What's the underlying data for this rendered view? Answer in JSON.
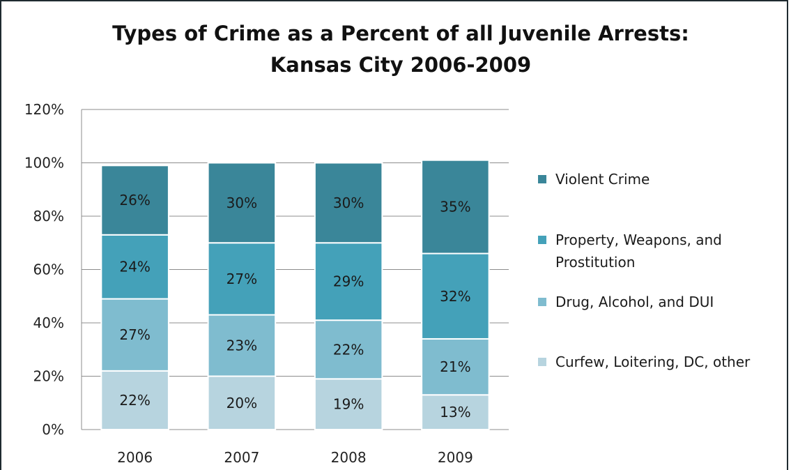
{
  "chart_data": {
    "type": "bar",
    "stacked": true,
    "title": "Types of Crime as a Percent of all Juvenile Arrests:",
    "subtitle": "Kansas City 2006-2009",
    "xlabel": "",
    "ylabel": "",
    "categories": [
      "2006",
      "2007",
      "2008",
      "2009"
    ],
    "ylim": [
      0,
      120
    ],
    "yticks": [
      "0%",
      "20%",
      "40%",
      "60%",
      "80%",
      "100%",
      "120%"
    ],
    "grid": true,
    "legend_position": "right",
    "series": [
      {
        "name": "Curfew, Loitering, DC, other",
        "values": [
          22,
          20,
          19,
          13
        ],
        "labels": [
          "22%",
          "20%",
          "19%",
          "13%"
        ],
        "color": "#b7d4df"
      },
      {
        "name": "Drug, Alcohol, and DUI",
        "values": [
          27,
          23,
          22,
          21
        ],
        "labels": [
          "27%",
          "23%",
          "22%",
          "21%"
        ],
        "color": "#7fbccf"
      },
      {
        "name": "Property, Weapons, and Prostitution",
        "values": [
          24,
          27,
          29,
          32
        ],
        "labels": [
          "24%",
          "27%",
          "29%",
          "32%"
        ],
        "color": "#44a1b9"
      },
      {
        "name": "Violent Crime",
        "values": [
          26,
          30,
          30,
          35
        ],
        "labels": [
          "26%",
          "30%",
          "30%",
          "35%"
        ],
        "color": "#3a8699"
      }
    ],
    "legend_order": [
      3,
      2,
      1,
      0
    ]
  }
}
